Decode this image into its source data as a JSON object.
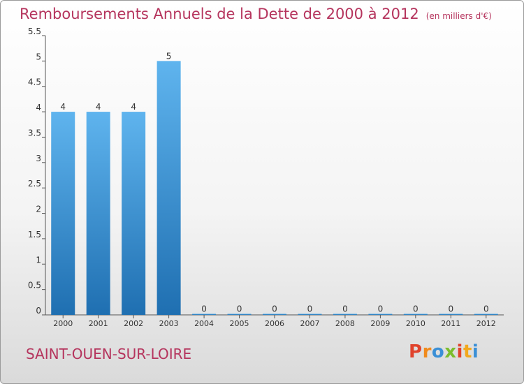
{
  "title": "Remboursements Annuels de la Dette de 2000 à 2012",
  "unit": "(en milliers d'€)",
  "commune": "SAINT-OUEN-SUR-LOIRE",
  "logo": {
    "letters": [
      "P",
      "r",
      "o",
      "x",
      "i",
      "t",
      "i"
    ],
    "colors": [
      "#e0432c",
      "#f08a1c",
      "#3a8fd6",
      "#7bbd2c",
      "#e0432c",
      "#f2a81d",
      "#3a8fd6"
    ]
  },
  "colors": {
    "bar_top": "#5fb4ee",
    "bar_bottom": "#1f6fb1",
    "title": "#b5345d",
    "axis": "#555555"
  },
  "chart_data": {
    "type": "bar",
    "title": "Remboursements Annuels de la Dette de 2000 à 2012",
    "xlabel": "",
    "ylabel": "",
    "categories": [
      "2000",
      "2001",
      "2002",
      "2003",
      "2004",
      "2005",
      "2006",
      "2007",
      "2008",
      "2009",
      "2010",
      "2011",
      "2012"
    ],
    "values": [
      4,
      4,
      4,
      5,
      0,
      0,
      0,
      0,
      0,
      0,
      0,
      0,
      0
    ],
    "labels": [
      "4",
      "4",
      "4",
      "5",
      "0",
      "0",
      "0",
      "0",
      "0",
      "0",
      "0",
      "0",
      "0"
    ],
    "ylim": [
      0,
      5.5
    ],
    "yticks": [
      0,
      0.5,
      1,
      1.5,
      2,
      2.5,
      3,
      3.5,
      4,
      4.5,
      5,
      5.5
    ],
    "ytick_labels": [
      "0",
      "0.5",
      "1",
      "1.5",
      "2",
      "2.5",
      "3",
      "3.5",
      "4",
      "4.5",
      "5",
      "5.5"
    ],
    "grid": false,
    "legend": "none"
  }
}
